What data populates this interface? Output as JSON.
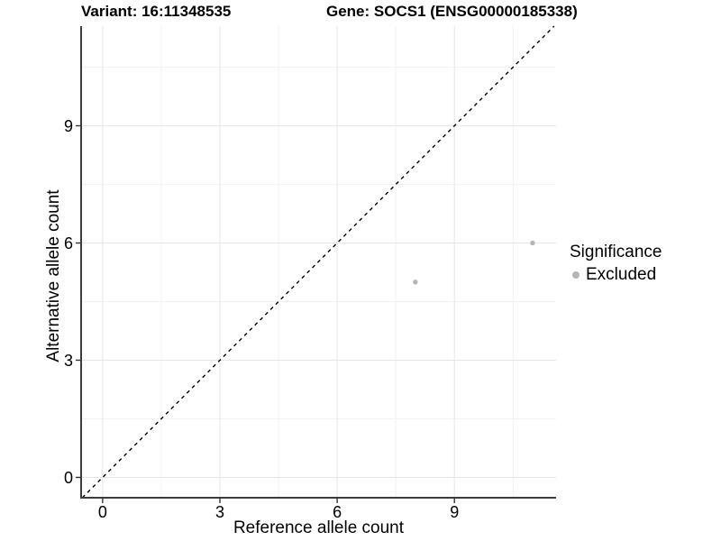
{
  "chart_data": {
    "type": "scatter",
    "title_left": "Variant: 16:11348535",
    "title_right": "Gene: SOCS1 (ENSG00000185338)",
    "xlabel": "Reference allele count",
    "ylabel": "Alternative allele count",
    "xlim": [
      -0.55,
      11.6
    ],
    "ylim": [
      -0.52,
      11.55
    ],
    "x_ticks": [
      0,
      3,
      6,
      9
    ],
    "y_ticks": [
      0,
      3,
      6,
      9
    ],
    "x_minor_ticks": [
      1.5,
      4.5,
      7.5,
      10.5
    ],
    "y_minor_ticks": [
      1.5,
      4.5,
      7.5,
      10.5
    ],
    "grid": "major+minor",
    "legend": {
      "title": "Significance",
      "position": "right",
      "items": [
        {
          "label": "Excluded",
          "color": "#b5b5b5"
        }
      ]
    },
    "series": [
      {
        "name": "Excluded",
        "color": "#b5b5b5",
        "marker": "circle",
        "points": [
          [
            8,
            5
          ],
          [
            11,
            6
          ]
        ]
      }
    ],
    "reference_line": {
      "kind": "identity",
      "equation": "y = x",
      "style": "dashed",
      "color": "#000000"
    },
    "colors": {
      "background": "#ffffff",
      "axis_line": "#3c3c3c",
      "tick_mark": "#333333",
      "grid_major": "#e6e6e6",
      "grid_minor": "#f2f2f2",
      "text": "#000000",
      "point": "#b5b5b5"
    }
  }
}
